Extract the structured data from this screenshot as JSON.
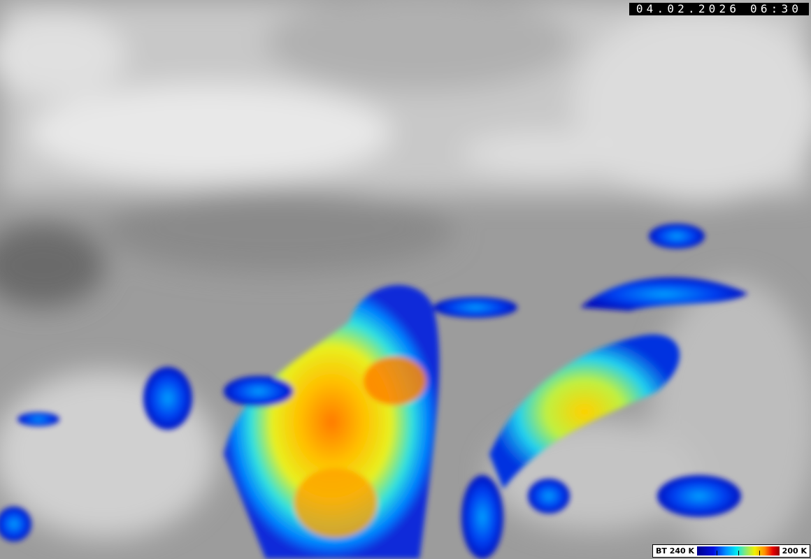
{
  "image": {
    "kind": "infrared satellite image",
    "timestamp": "04.02.2026 06:30"
  },
  "legend": {
    "label_left": "BT 240 K",
    "label_right": "200 K",
    "colors": [
      "#00008c",
      "#0010e0",
      "#0090ff",
      "#00e8f0",
      "#80e880",
      "#f0f000",
      "#ff9000",
      "#e80000",
      "#900000"
    ]
  }
}
